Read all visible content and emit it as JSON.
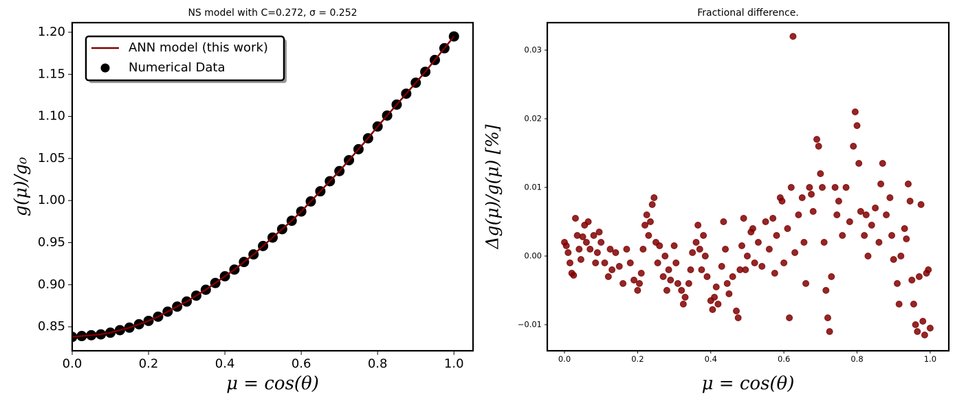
{
  "chart_data": [
    {
      "type": "line",
      "title": "NS model with C=0.272, σ = 0.252",
      "xlabel": "μ = cos(θ)",
      "ylabel": "g(μ)/g₀",
      "x": [
        0,
        0.025,
        0.05,
        0.075,
        0.1,
        0.125,
        0.15,
        0.175,
        0.2,
        0.225,
        0.25,
        0.275,
        0.3,
        0.325,
        0.35,
        0.375,
        0.4,
        0.425,
        0.45,
        0.475,
        0.5,
        0.525,
        0.55,
        0.575,
        0.6,
        0.625,
        0.65,
        0.675,
        0.7,
        0.725,
        0.75,
        0.775,
        0.8,
        0.825,
        0.85,
        0.875,
        0.9,
        0.925,
        0.95,
        0.975,
        1
      ],
      "series": [
        {
          "name": "Numerical Data",
          "type": "scatter",
          "color": "#000000",
          "values": [
            0.838,
            0.839,
            0.84,
            0.841,
            0.843,
            0.846,
            0.849,
            0.853,
            0.857,
            0.862,
            0.868,
            0.874,
            0.88,
            0.887,
            0.894,
            0.902,
            0.91,
            0.918,
            0.927,
            0.936,
            0.946,
            0.956,
            0.966,
            0.976,
            0.987,
            0.999,
            1.011,
            1.023,
            1.035,
            1.048,
            1.061,
            1.074,
            1.088,
            1.101,
            1.114,
            1.127,
            1.14,
            1.153,
            1.167,
            1.181,
            1.195
          ]
        },
        {
          "name": "ANN model (this work)",
          "type": "line",
          "color": "#800000",
          "values": [
            0.838,
            0.839,
            0.84,
            0.841,
            0.843,
            0.846,
            0.849,
            0.853,
            0.857,
            0.862,
            0.868,
            0.874,
            0.88,
            0.887,
            0.894,
            0.902,
            0.91,
            0.918,
            0.927,
            0.936,
            0.946,
            0.956,
            0.966,
            0.976,
            0.987,
            0.999,
            1.011,
            1.023,
            1.035,
            1.048,
            1.061,
            1.074,
            1.088,
            1.101,
            1.114,
            1.127,
            1.14,
            1.153,
            1.167,
            1.181,
            1.195
          ]
        }
      ],
      "legend": "upper left",
      "xlim": [
        0,
        1.05
      ],
      "ylim": [
        0.8215,
        1.2114
      ],
      "xticks": [
        {
          "value": 0,
          "label": "0.0"
        },
        0.2,
        0.4,
        0.6,
        0.8,
        {
          "value": 1,
          "label": "1.0"
        }
      ],
      "yticks": [
        0.85,
        {
          "value": 0.9,
          "label": "0.90"
        },
        0.95,
        {
          "value": 1,
          "label": "1.00"
        },
        1.05,
        {
          "value": 1.1,
          "label": "1.10"
        },
        1.15,
        {
          "value": 1.2,
          "label": "1.20"
        }
      ],
      "grid": false
    },
    {
      "type": "scatter",
      "title": "Fractional difference.",
      "xlabel": "μ = cos(θ)",
      "ylabel": "Δg(μ)/g(μ)  [%]",
      "color": "#800000",
      "x": [
        0.0,
        0.005,
        0.01,
        0.015,
        0.02,
        0.025,
        0.03,
        0.035,
        0.04,
        0.045,
        0.05,
        0.055,
        0.06,
        0.065,
        0.07,
        0.08,
        0.085,
        0.09,
        0.095,
        0.1,
        0.11,
        0.12,
        0.125,
        0.13,
        0.14,
        0.15,
        0.16,
        0.17,
        0.18,
        0.19,
        0.2,
        0.205,
        0.21,
        0.215,
        0.22,
        0.225,
        0.23,
        0.235,
        0.24,
        0.245,
        0.25,
        0.255,
        0.26,
        0.27,
        0.275,
        0.28,
        0.285,
        0.29,
        0.3,
        0.305,
        0.31,
        0.32,
        0.325,
        0.33,
        0.34,
        0.345,
        0.35,
        0.36,
        0.365,
        0.37,
        0.375,
        0.38,
        0.385,
        0.39,
        0.4,
        0.405,
        0.41,
        0.415,
        0.42,
        0.43,
        0.435,
        0.44,
        0.445,
        0.45,
        0.46,
        0.47,
        0.475,
        0.48,
        0.485,
        0.49,
        0.495,
        0.5,
        0.51,
        0.515,
        0.52,
        0.53,
        0.54,
        0.55,
        0.56,
        0.57,
        0.575,
        0.58,
        0.59,
        0.595,
        0.6,
        0.61,
        0.615,
        0.62,
        0.625,
        0.63,
        0.64,
        0.65,
        0.655,
        0.66,
        0.67,
        0.675,
        0.68,
        0.69,
        0.695,
        0.7,
        0.705,
        0.71,
        0.715,
        0.72,
        0.725,
        0.73,
        0.74,
        0.745,
        0.75,
        0.76,
        0.77,
        0.78,
        0.79,
        0.795,
        0.8,
        0.805,
        0.81,
        0.82,
        0.825,
        0.83,
        0.84,
        0.85,
        0.86,
        0.865,
        0.87,
        0.88,
        0.89,
        0.895,
        0.9,
        0.91,
        0.915,
        0.92,
        0.93,
        0.935,
        0.94,
        0.945,
        0.95,
        0.955,
        0.96,
        0.965,
        0.97,
        0.975,
        0.98,
        0.985,
        0.99,
        0.995,
        1.0
      ],
      "values": [
        0.002,
        0.0015,
        0.0005,
        -0.001,
        -0.0025,
        -0.0028,
        0.0055,
        0.003,
        0.001,
        -0.0005,
        0.0028,
        0.0045,
        0.002,
        0.005,
        0.001,
        0.003,
        -0.001,
        0.0005,
        0.0035,
        0.002,
        -0.001,
        -0.003,
        0.001,
        -0.002,
        0.0005,
        -0.0015,
        -0.004,
        0.001,
        -0.001,
        -0.0035,
        -0.005,
        -0.004,
        -0.0025,
        0.001,
        0.0045,
        0.006,
        0.003,
        0.005,
        0.0075,
        0.0085,
        0.002,
        -0.001,
        0.0015,
        -0.003,
        0.0,
        -0.005,
        -0.002,
        -0.0035,
        0.0015,
        -0.001,
        -0.004,
        -0.005,
        -0.007,
        -0.006,
        -0.004,
        -0.002,
        0.0005,
        0.002,
        0.0045,
        0.001,
        -0.002,
        0.003,
        0.0,
        -0.003,
        -0.0065,
        -0.0078,
        -0.006,
        -0.0045,
        -0.007,
        -0.0015,
        0.005,
        0.001,
        -0.004,
        -0.0055,
        -0.003,
        -0.008,
        -0.009,
        -0.002,
        0.0015,
        0.0055,
        -0.002,
        0.0,
        0.0035,
        0.004,
        -0.001,
        0.002,
        -0.0015,
        0.005,
        0.001,
        0.0055,
        -0.0025,
        0.003,
        0.0085,
        0.008,
        -0.001,
        0.004,
        -0.009,
        0.01,
        0.032,
        0.0005,
        0.006,
        0.0085,
        0.002,
        -0.004,
        0.01,
        0.009,
        0.0065,
        0.017,
        0.016,
        0.012,
        0.01,
        0.002,
        -0.005,
        -0.009,
        -0.011,
        -0.003,
        0.01,
        0.006,
        0.008,
        0.003,
        0.01,
        0.005,
        0.016,
        0.021,
        0.019,
        0.0135,
        0.0065,
        0.003,
        0.006,
        0.0,
        0.0045,
        0.007,
        0.002,
        0.0105,
        0.0135,
        0.006,
        0.0085,
        0.003,
        -0.0005,
        -0.004,
        -0.007,
        0.0,
        0.004,
        0.0025,
        0.0105,
        0.008,
        -0.0035,
        -0.007,
        -0.01,
        -0.011,
        -0.003,
        0.0075,
        -0.0095,
        -0.0115,
        -0.0025,
        -0.002,
        -0.0105
      ],
      "xlim": [
        -0.047,
        1.051
      ],
      "ylim": [
        -0.0138,
        0.034
      ],
      "xticks": [
        {
          "value": 0,
          "label": "0.0"
        },
        0.2,
        0.4,
        0.6,
        0.8,
        {
          "value": 1,
          "label": "1.0"
        }
      ],
      "yticks": [
        {
          "value": -0.01,
          "label": "−0.01"
        },
        {
          "value": 0,
          "label": "0.00"
        },
        0.01,
        0.02,
        0.03
      ],
      "grid": false
    }
  ]
}
